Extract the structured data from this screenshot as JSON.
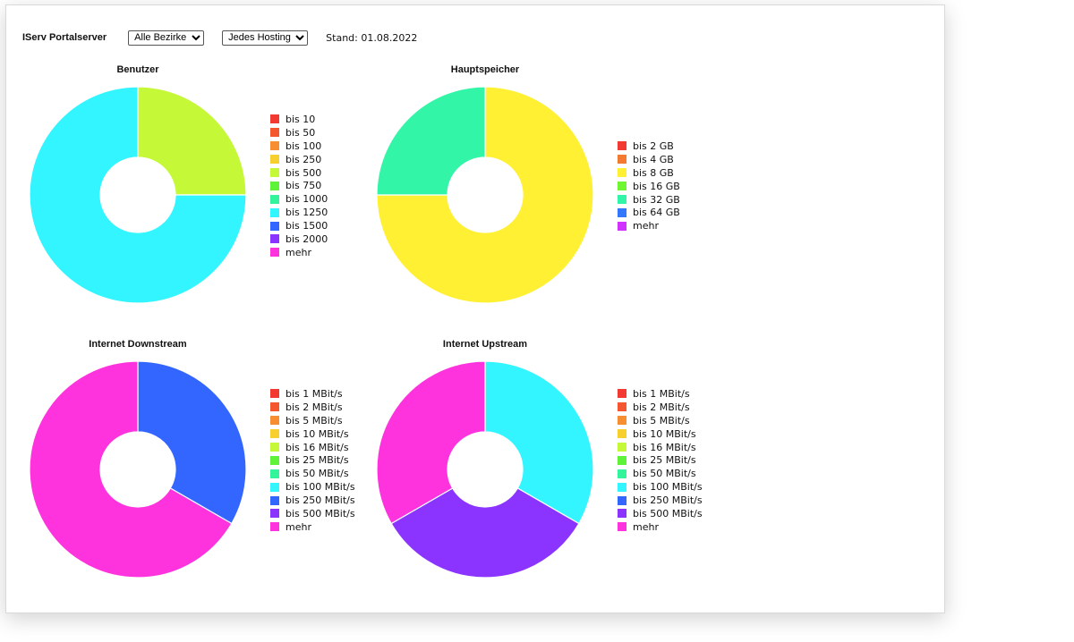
{
  "header": {
    "app_title": "IServ Portalserver",
    "district_select": "Alle Bezirke",
    "hosting_select": "Jedes Hosting",
    "stand": "Stand: 01.08.2022"
  },
  "chart_data": [
    {
      "type": "pie",
      "title": "Benutzer",
      "legend": [
        "bis 10",
        "bis 50",
        "bis 100",
        "bis 250",
        "bis 500",
        "bis 750",
        "bis 1000",
        "bis 1250",
        "bis 1500",
        "bis 2000",
        "mehr"
      ],
      "colors": [
        "#f33a32",
        "#f4562f",
        "#f78e32",
        "#f7cf2e",
        "#c5f836",
        "#5ef338",
        "#33f49a",
        "#33f5ff",
        "#3366ff",
        "#8b33ff",
        "#ff33dd"
      ],
      "values": [
        0,
        0,
        0,
        0,
        1,
        0,
        0,
        3,
        0,
        0,
        0
      ]
    },
    {
      "type": "pie",
      "title": "Hauptspeicher",
      "legend": [
        "bis 2 GB",
        "bis 4 GB",
        "bis 8 GB",
        "bis 16 GB",
        "bis 32 GB",
        "bis 64 GB",
        "mehr"
      ],
      "colors": [
        "#f33a32",
        "#f47a32",
        "#fff033",
        "#6ff633",
        "#33f5a8",
        "#3377ff",
        "#d033ff"
      ],
      "values": [
        0,
        0,
        3,
        0,
        1,
        0,
        0
      ]
    },
    {
      "type": "pie",
      "title": "Internet Downstream",
      "legend": [
        "bis 1 MBit/s",
        "bis 2 MBit/s",
        "bis 5 MBit/s",
        "bis 10 MBit/s",
        "bis 16 MBit/s",
        "bis 25 MBit/s",
        "bis 50 MBit/s",
        "bis 100 MBit/s",
        "bis 250 MBit/s",
        "bis 500 MBit/s",
        "mehr"
      ],
      "colors": [
        "#f33a32",
        "#f4562f",
        "#f78e32",
        "#f7cf2e",
        "#c5f836",
        "#5ef338",
        "#33f49a",
        "#33f5ff",
        "#3366ff",
        "#8b33ff",
        "#ff33dd"
      ],
      "values": [
        0,
        0,
        0,
        0,
        0,
        0,
        0,
        0,
        1,
        0,
        2
      ]
    },
    {
      "type": "pie",
      "title": "Internet Upstream",
      "legend": [
        "bis 1 MBit/s",
        "bis 2 MBit/s",
        "bis 5 MBit/s",
        "bis 10 MBit/s",
        "bis 16 MBit/s",
        "bis 25 MBit/s",
        "bis 50 MBit/s",
        "bis 100 MBit/s",
        "bis 250 MBit/s",
        "bis 500 MBit/s",
        "mehr"
      ],
      "colors": [
        "#f33a32",
        "#f4562f",
        "#f78e32",
        "#f7cf2e",
        "#c5f836",
        "#5ef338",
        "#33f49a",
        "#33f5ff",
        "#3366ff",
        "#8b33ff",
        "#ff33dd"
      ],
      "values": [
        0,
        0,
        0,
        0,
        0,
        0,
        0,
        1,
        0,
        1,
        1
      ]
    }
  ]
}
